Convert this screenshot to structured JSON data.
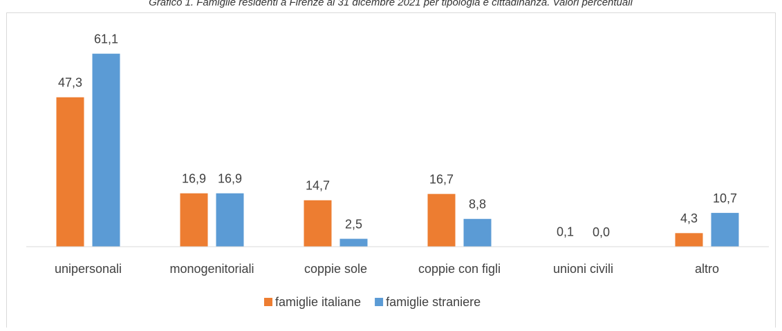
{
  "chart_data": {
    "type": "bar",
    "title": "Grafico 1. Famiglie residenti a Firenze al 31 dicembre 2021 per tipologia e cittadinanza. Valori percentuali",
    "categories": [
      "unipersonali",
      "monogenitoriali",
      "coppie sole",
      "coppie con figli",
      "unioni civili",
      "altro"
    ],
    "series": [
      {
        "name": "famiglie italiane",
        "color": "#ed7d31",
        "values": [
          47.3,
          16.9,
          14.7,
          16.7,
          0.1,
          4.3
        ],
        "value_labels": [
          "47,3",
          "16,9",
          "14,7",
          "16,7",
          "0,1",
          "4,3"
        ]
      },
      {
        "name": "famiglie straniere",
        "color": "#5b9bd5",
        "values": [
          61.1,
          16.9,
          2.5,
          8.8,
          0.0,
          10.7
        ],
        "value_labels": [
          "61,1",
          "16,9",
          "2,5",
          "8,8",
          "0,0",
          "10,7"
        ]
      }
    ],
    "ylim": [
      0,
      70
    ],
    "legend": "bottom"
  }
}
